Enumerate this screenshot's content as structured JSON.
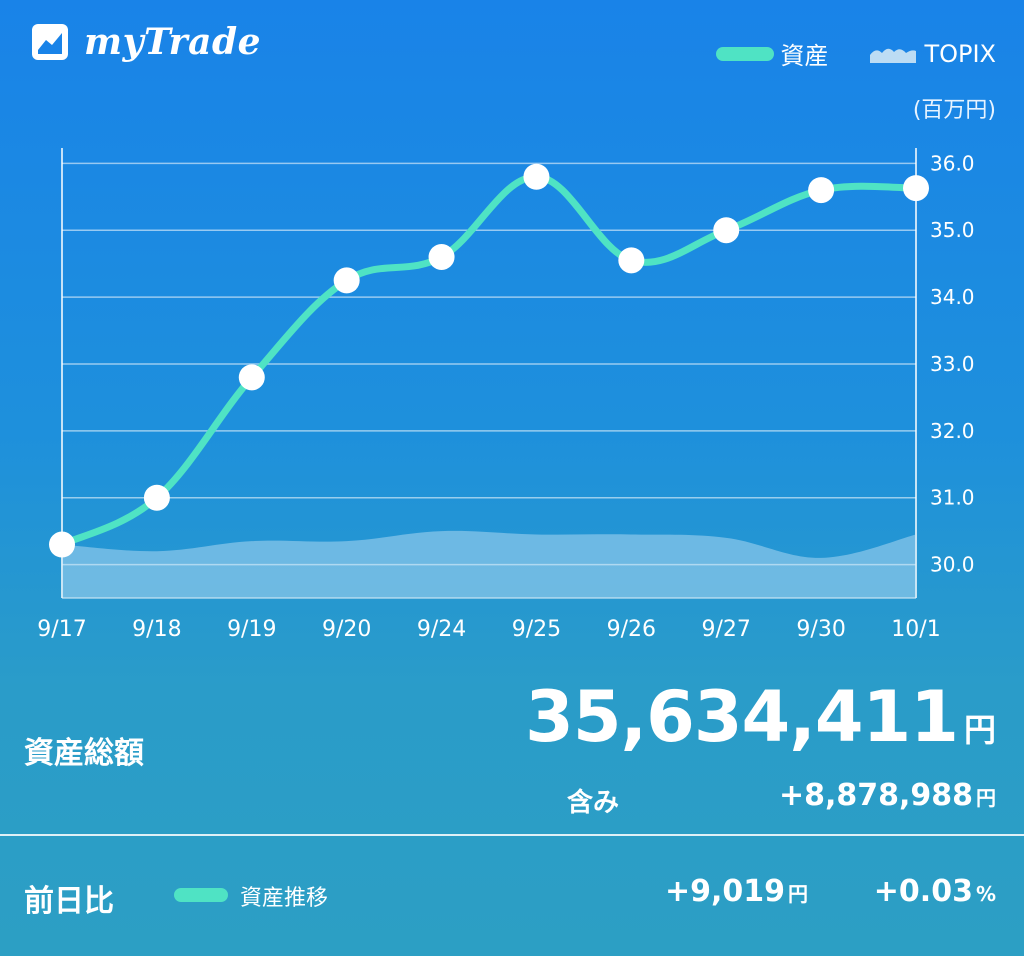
{
  "app": {
    "name": "myTrade",
    "logo_icon": "chart-logo-icon"
  },
  "legend": {
    "asset_label": "資産",
    "topix_label": "TOPIX",
    "asset_color": "#4fe3c4",
    "topix_color": "#bcdcf4"
  },
  "unit_label": "(百万円)",
  "chart_data": {
    "type": "line",
    "categories": [
      "9/17",
      "9/18",
      "9/19",
      "9/20",
      "9/24",
      "9/25",
      "9/26",
      "9/27",
      "9/30",
      "10/1"
    ],
    "series": [
      {
        "name": "資産",
        "values": [
          30.3,
          31.0,
          32.8,
          34.25,
          34.6,
          35.8,
          34.55,
          35.0,
          35.6,
          35.63
        ]
      },
      {
        "name": "TOPIX",
        "values": [
          30.3,
          30.2,
          30.35,
          30.35,
          30.5,
          30.45,
          30.45,
          30.4,
          30.1,
          30.45
        ]
      }
    ],
    "y_ticks": [
      "30.0",
      "31.0",
      "32.0",
      "33.0",
      "34.0",
      "35.0",
      "36.0"
    ],
    "ylim": [
      29.5,
      36.2
    ],
    "ylabel": "(百万円)",
    "grid": true,
    "legend_position": "top-right"
  },
  "summary": {
    "total_label": "資産総額",
    "total_value": "35,634,411",
    "total_unit": "円",
    "included_label": "含み",
    "included_value": "+8,878,988",
    "included_unit": "円"
  },
  "daily": {
    "label": "前日比",
    "trend_label": "資産推移",
    "change_amount": "+9,019",
    "change_unit": "円",
    "change_percent": "+0.03",
    "percent_unit": "%"
  }
}
